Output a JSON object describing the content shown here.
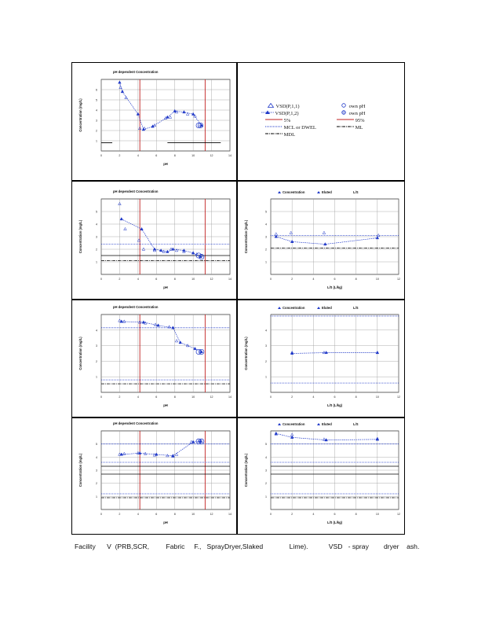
{
  "caption": "Facility      V  (PRB,SCR,         Fabric     F.,   SprayDryer,Slaked              Lime).           VSD   - spray        dryer    ash.",
  "legend": {
    "items": [
      {
        "name": "legend-vsd-p11",
        "label": "VSD(P,1,1)",
        "symbol": "triangle"
      },
      {
        "name": "legend-own-ph-1",
        "label": "own pH",
        "symbol": "circle"
      },
      {
        "name": "legend-vsd-p12",
        "label": "VSD(P,1,2)",
        "symbol": "triangle-dash"
      },
      {
        "name": "legend-own-ph-2",
        "label": "own pH",
        "symbol": "circle"
      },
      {
        "name": "legend-5pct",
        "label": "5%",
        "symbol": "red-line"
      },
      {
        "name": "legend-95pct",
        "label": "95%",
        "symbol": "red-line"
      },
      {
        "name": "legend-mcl",
        "label": "MCL or DWEL",
        "symbol": "dotted"
      },
      {
        "name": "legend-ml",
        "label": "ML",
        "symbol": "dash-dot"
      },
      {
        "name": "legend-mdl",
        "label": "MDL",
        "symbol": "dash-dot"
      }
    ]
  },
  "chart_data": [
    {
      "id": "ph-1",
      "type": "scatter",
      "title": "pH dependent Concentration",
      "xlabel": "pH",
      "ylabel": "Concentration (mg/L)",
      "xlim": [
        0,
        14
      ],
      "ylim": [
        0,
        7
      ],
      "xticks": [
        "0",
        "2",
        "4",
        "6",
        "8",
        "10",
        "12",
        "14"
      ],
      "yticks": [
        "1",
        "2",
        "3",
        "4",
        "5",
        "6"
      ],
      "series": [
        {
          "name": "VSD(P,1,1)",
          "x": [
            2.1,
            2.7,
            4.2,
            4.7,
            5.8,
            7.0,
            7.5,
            8.2,
            9.4,
            10.2,
            10.8
          ],
          "y": [
            6.2,
            5.2,
            2.2,
            2.2,
            2.5,
            3.2,
            3.3,
            3.8,
            3.6,
            3.4,
            2.5
          ]
        },
        {
          "name": "VSD(P,1,2)",
          "x": [
            2.0,
            2.3,
            4.0,
            4.6,
            5.6,
            7.2,
            8.0,
            9.0,
            10.0,
            10.9
          ],
          "y": [
            6.7,
            5.8,
            3.6,
            2.1,
            2.4,
            3.3,
            3.9,
            3.8,
            3.6,
            2.5
          ]
        },
        {
          "name": "own pH",
          "x": [
            10.6,
            10.8
          ],
          "y": [
            2.5,
            2.5
          ]
        }
      ],
      "vlines": [
        4.2,
        11.3
      ],
      "hlines": [],
      "segments": [
        {
          "x": [
            0,
            1.2
          ],
          "y": [
            0.8,
            0.8
          ]
        },
        {
          "x": [
            7.2,
            13
          ],
          "y": [
            0.8,
            0.8
          ]
        }
      ]
    },
    {
      "id": "ph-2",
      "type": "scatter",
      "title": "pH dependent Concentration",
      "xlabel": "pH",
      "ylabel": "Concentration (mg/L)",
      "xlim": [
        0,
        14
      ],
      "ylim": [
        0,
        6
      ],
      "xticks": [
        "0",
        "2",
        "4",
        "6",
        "8",
        "10",
        "12",
        "14"
      ],
      "yticks": [
        "1",
        "2",
        "3",
        "4",
        "5"
      ],
      "series": [
        {
          "name": "VSD(P,1,1)",
          "x": [
            2.0,
            2.6,
            4.1,
            4.6,
            5.8,
            6.8,
            7.6,
            8.2,
            9.0,
            10.4,
            10.9
          ],
          "y": [
            5.6,
            3.6,
            2.7,
            2.0,
            1.9,
            1.8,
            2.0,
            1.9,
            1.8,
            1.6,
            1.5
          ]
        },
        {
          "name": "VSD(P,1,2)",
          "x": [
            2.2,
            4.4,
            5.8,
            6.5,
            7.2,
            7.8,
            9.0,
            10.0,
            10.8
          ],
          "y": [
            4.4,
            3.6,
            2.0,
            1.9,
            1.8,
            2.0,
            1.9,
            1.7,
            1.4
          ]
        },
        {
          "name": "own pH",
          "x": [
            10.6,
            10.9
          ],
          "y": [
            1.5,
            1.4
          ]
        }
      ],
      "vlines": [
        4.2,
        11.3
      ],
      "hlines": [
        {
          "y": 2.4,
          "style": "dotted"
        },
        {
          "y": 1.5,
          "style": "solid"
        },
        {
          "y": 1.1,
          "style": "dashdot"
        }
      ]
    },
    {
      "id": "ls-2",
      "type": "scatter",
      "title": "",
      "legend_labels": [
        "Concentration",
        "Eluted",
        "L/S"
      ],
      "xlabel": "L/S (L/kg)",
      "ylabel": "Concentration (mg/L)",
      "xlim": [
        0,
        12
      ],
      "ylim": [
        0,
        6
      ],
      "xticks": [
        "0",
        "2",
        "4",
        "6",
        "8",
        "10",
        "12"
      ],
      "yticks": [
        "1",
        "2",
        "3",
        "4",
        "5"
      ],
      "series": [
        {
          "name": "Concentration",
          "x": [
            0.5,
            1.9,
            5.0,
            10.1
          ],
          "y": [
            3.2,
            3.3,
            3.3,
            3.1
          ]
        },
        {
          "name": "Eluted",
          "x": [
            0.5,
            2.0,
            5.1,
            10.0
          ],
          "y": [
            3.0,
            2.6,
            2.4,
            2.9
          ]
        }
      ],
      "hlines": [
        {
          "y": 3.1,
          "style": "dotted"
        },
        {
          "y": 2.1,
          "style": "dashdot"
        }
      ]
    },
    {
      "id": "ph-3",
      "type": "scatter",
      "title": "pH dependent Concentration",
      "xlabel": "pH",
      "ylabel": "Concentration (mg/L)",
      "xlim": [
        0,
        14
      ],
      "ylim": [
        0,
        5
      ],
      "xticks": [
        "0",
        "2",
        "4",
        "6",
        "8",
        "10",
        "12",
        "14"
      ],
      "yticks": [
        "1",
        "2",
        "3",
        "4"
      ],
      "series": [
        {
          "name": "VSD(P,1,1)",
          "x": [
            2.0,
            2.5,
            4.2,
            4.8,
            5.9,
            7.4,
            8.2,
            9.4,
            10.8
          ],
          "y": [
            4.6,
            4.55,
            4.5,
            4.45,
            4.35,
            4.2,
            3.3,
            3.0,
            2.6
          ]
        },
        {
          "name": "VSD(P,1,2)",
          "x": [
            2.2,
            4.6,
            6.2,
            7.8,
            8.6,
            10.2,
            10.9
          ],
          "y": [
            4.55,
            4.5,
            4.3,
            4.15,
            3.2,
            2.8,
            2.6
          ]
        },
        {
          "name": "own pH",
          "x": [
            10.6,
            10.9
          ],
          "y": [
            2.6,
            2.6
          ]
        }
      ],
      "vlines": [
        4.2,
        11.3
      ],
      "hlines": [
        {
          "y": 4.15,
          "style": "dotted"
        },
        {
          "y": 0.8,
          "style": "dotted"
        },
        {
          "y": 0.55,
          "style": "dashdot"
        }
      ]
    },
    {
      "id": "ls-3",
      "type": "scatter",
      "title": "",
      "legend_labels": [
        "Concentration",
        "Eluted",
        "L/S"
      ],
      "xlabel": "L/S (L/kg)",
      "ylabel": "Concentration (mg/L)",
      "xlim": [
        0,
        12
      ],
      "ylim": [
        0,
        5
      ],
      "xticks": [
        "0",
        "2",
        "4",
        "6",
        "8",
        "10",
        "12"
      ],
      "yticks": [
        "1",
        "2",
        "3",
        "4"
      ],
      "series": [
        {
          "name": "Concentration",
          "x": [
            2.0,
            5.0,
            10.0
          ],
          "y": [
            2.55,
            2.55,
            2.55
          ]
        },
        {
          "name": "Eluted",
          "x": [
            2.0,
            5.2,
            10.0
          ],
          "y": [
            2.5,
            2.55,
            2.55
          ]
        }
      ],
      "hlines": [
        {
          "y": 4.9,
          "style": "dotted"
        },
        {
          "y": 0.6,
          "style": "dotted"
        }
      ]
    },
    {
      "id": "ph-4",
      "type": "scatter",
      "title": "pH dependent Concentration",
      "xlabel": "pH",
      "ylabel": "Concentration (mg/L)",
      "xlim": [
        0,
        14
      ],
      "ylim": [
        0,
        6
      ],
      "xticks": [
        "0",
        "2",
        "4",
        "6",
        "8",
        "10",
        "12",
        "14"
      ],
      "yticks": [
        "1",
        "2",
        "3",
        "4",
        "5"
      ],
      "series": [
        {
          "name": "VSD(P,1,1)",
          "x": [
            2.0,
            2.5,
            4.0,
            4.8,
            5.8,
            7.2,
            7.8,
            8.2,
            9.8,
            10.6,
            10.9
          ],
          "y": [
            4.2,
            4.25,
            4.3,
            4.25,
            4.15,
            4.1,
            4.05,
            4.2,
            5.15,
            5.2,
            5.2
          ]
        },
        {
          "name": "VSD(P,1,2)",
          "x": [
            2.2,
            4.2,
            6.0,
            7.8,
            10.0,
            10.8
          ],
          "y": [
            4.2,
            4.3,
            4.2,
            4.1,
            5.15,
            5.2
          ]
        },
        {
          "name": "own pH",
          "x": [
            10.6,
            10.9
          ],
          "y": [
            5.2,
            5.2
          ]
        }
      ],
      "vlines": [
        4.2,
        11.3
      ],
      "hlines": [
        {
          "y": 5.0,
          "style": "dotted"
        },
        {
          "y": 3.6,
          "style": "dotted"
        },
        {
          "y": 3.3,
          "style": "solid"
        },
        {
          "y": 2.7,
          "style": "solid"
        },
        {
          "y": 1.2,
          "style": "dotted"
        },
        {
          "y": 0.9,
          "style": "dashdot"
        }
      ]
    },
    {
      "id": "ls-4",
      "type": "scatter",
      "title": "",
      "legend_labels": [
        "Concentration",
        "Eluted",
        "L/S"
      ],
      "xlabel": "L/S (L/kg)",
      "ylabel": "Concentration (mg/L)",
      "xlim": [
        0,
        12
      ],
      "ylim": [
        0,
        6
      ],
      "xticks": [
        "0",
        "2",
        "4",
        "6",
        "8",
        "10",
        "12"
      ],
      "yticks": [
        "1",
        "2",
        "3",
        "4",
        "5"
      ],
      "series": [
        {
          "name": "Concentration",
          "x": [
            0.5,
            2.0,
            5.0,
            10.0
          ],
          "y": [
            5.75,
            5.7,
            5.35,
            5.4
          ]
        },
        {
          "name": "Eluted",
          "x": [
            0.5,
            2.0,
            5.2,
            10.0
          ],
          "y": [
            5.8,
            5.5,
            5.3,
            5.35
          ]
        }
      ],
      "hlines": [
        {
          "y": 5.0,
          "style": "dotted"
        },
        {
          "y": 3.6,
          "style": "dotted"
        },
        {
          "y": 3.3,
          "style": "solid"
        },
        {
          "y": 2.7,
          "style": "solid"
        },
        {
          "y": 1.2,
          "style": "dotted"
        },
        {
          "y": 0.9,
          "style": "dashdot"
        }
      ]
    }
  ]
}
